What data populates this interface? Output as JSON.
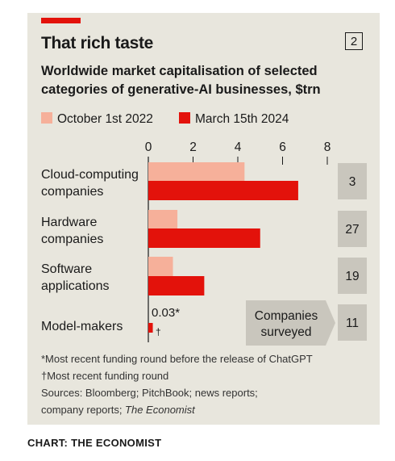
{
  "card": {
    "title": "That rich taste",
    "chart_number": "2",
    "subtitle": "Worldwide market capitalisation of selected categories of generative-AI businesses, $trn"
  },
  "chart_data": {
    "type": "bar",
    "categories": [
      [
        "Cloud-computing",
        "companies"
      ],
      [
        "Hardware",
        "companies"
      ],
      [
        "Software",
        "applications"
      ],
      [
        "Model-makers"
      ]
    ],
    "series": [
      {
        "name": "October 1st 2022",
        "color": "#f6b09a",
        "values": [
          4.3,
          1.3,
          1.1,
          0.03
        ]
      },
      {
        "name": "March 15th 2024",
        "color": "#e3120b",
        "values": [
          6.7,
          5.0,
          2.5,
          0.2
        ]
      }
    ],
    "xlim": [
      0,
      8
    ],
    "xticks": [
      "0",
      "2",
      "4",
      "6",
      "8"
    ],
    "companies_surveyed": [
      "3",
      "27",
      "19",
      "11"
    ],
    "companies_surveyed_label": [
      "Companies",
      "surveyed"
    ],
    "annotations": {
      "model_makers_oct": "0.03*",
      "model_makers_mar": "†"
    }
  },
  "notes": {
    "footnote_1": "*Most recent funding round before the release of ChatGPT",
    "footnote_2": "†Most recent funding round",
    "sources_line_1": "Sources: Bloomberg; PitchBook; news reports;",
    "sources_line_2": "company reports; ",
    "sources_line_2_italic": "The Economist"
  },
  "credit": "CHART: THE ECONOMIST"
}
